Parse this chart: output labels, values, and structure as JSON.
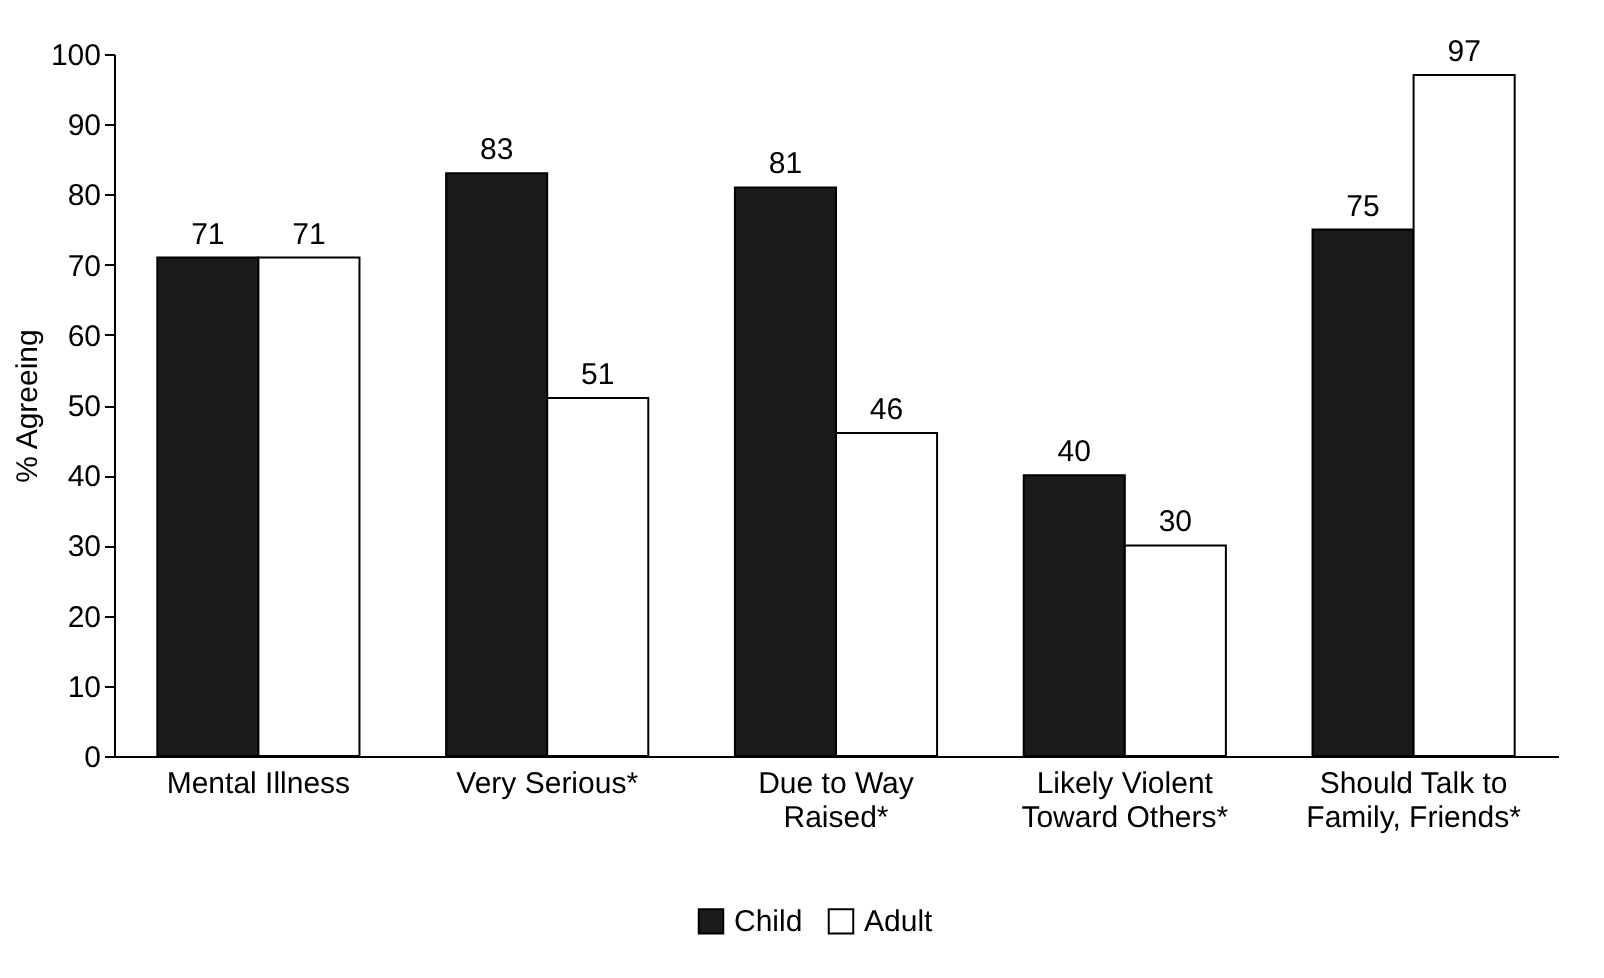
{
  "chart_data": {
    "type": "bar",
    "ylabel": "% Agreeing",
    "categories": [
      "Mental Illness",
      "Very Serious*",
      "Due to Way Raised*",
      "Likely Violent Toward Others*",
      "Should Talk to Family, Friends*"
    ],
    "series": [
      {
        "name": "Child",
        "color": "#1a1a1a",
        "values": [
          71,
          83,
          81,
          40,
          75
        ]
      },
      {
        "name": "Adult",
        "color": "#ffffff",
        "values": [
          71,
          51,
          46,
          30,
          97
        ]
      }
    ],
    "ylim": [
      0,
      100
    ],
    "yticks": [
      0,
      10,
      20,
      30,
      40,
      50,
      60,
      70,
      80,
      90,
      100
    ],
    "grid": false,
    "legend": "bottom",
    "data_labels": true
  }
}
